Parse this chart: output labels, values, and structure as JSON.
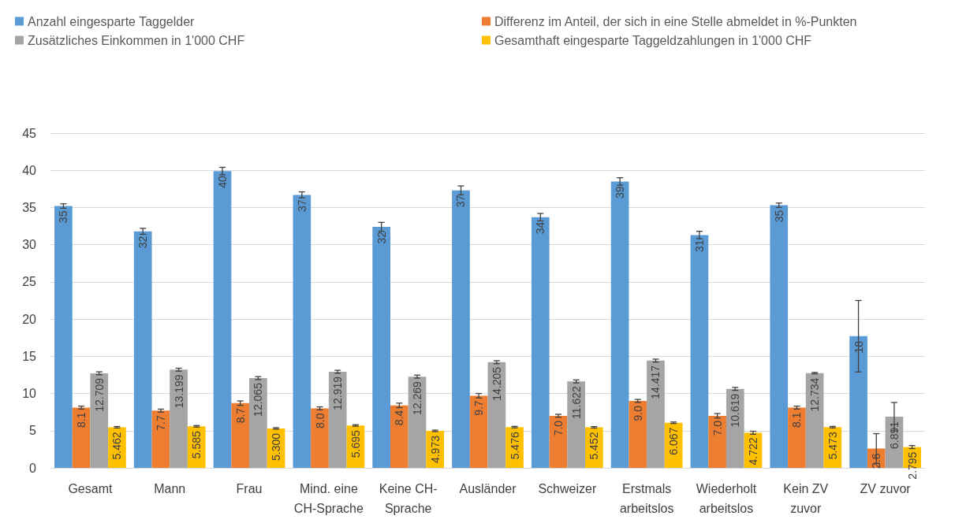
{
  "chart_data": {
    "type": "bar",
    "categories": [
      "Gesamt",
      "Mann",
      "Frau",
      "Mind. eine\nCH-Sprache",
      "Keine CH-\nSprache",
      "Ausländer",
      "Schweizer",
      "Erstmals\narbeitslos",
      "Wiederholt\narbeitslos",
      "Kein ZV\nzuvor",
      "ZV zuvor"
    ],
    "series": [
      {
        "name": "Anzahl eingesparte Taggelder",
        "color": "#5b9bd5",
        "values": [
          35.2,
          31.8,
          39.9,
          36.7,
          32.4,
          37.3,
          33.7,
          38.5,
          31.3,
          35.3,
          17.7
        ],
        "errors": [
          0.3,
          0.4,
          0.5,
          0.4,
          0.6,
          0.6,
          0.5,
          0.5,
          0.5,
          0.3,
          4.8
        ],
        "value_labels": [
          "35",
          "32",
          "40",
          "37",
          "32",
          "37",
          "34",
          "39",
          "31",
          "35",
          "18"
        ]
      },
      {
        "name": "Differenz im Anteil, der sich in eine Stelle abmeldet in %-Punkten",
        "color": "#ed7d31",
        "values": [
          8.1,
          7.7,
          8.7,
          8.0,
          8.4,
          9.7,
          7.0,
          9.0,
          7.0,
          8.1,
          2.6
        ],
        "errors": [
          0.2,
          0.2,
          0.3,
          0.2,
          0.3,
          0.3,
          0.2,
          0.2,
          0.3,
          0.2,
          2.0
        ],
        "value_labels": [
          "8.1",
          "7.7",
          "8.7",
          "8.0",
          "8.4",
          "9.7",
          "7.0",
          "9.0",
          "7.0",
          "8.1",
          "2.6"
        ]
      },
      {
        "name": "Zusätzliches Einkommen in 1'000 CHF",
        "color": "#a5a5a5",
        "values": [
          12.709,
          13.199,
          12.065,
          12.919,
          12.269,
          14.205,
          11.622,
          14.417,
          10.619,
          12.734,
          6.891
        ],
        "errors": [
          0.2,
          0.2,
          0.2,
          0.2,
          0.2,
          0.2,
          0.2,
          0.2,
          0.2,
          0.1,
          1.9
        ],
        "value_labels": [
          "12.709",
          "13.199",
          "12.065",
          "12.919",
          "12.269",
          "14.205",
          "11.622",
          "14.417",
          "10.619",
          "12.734",
          "6.891"
        ]
      },
      {
        "name": "Gesamthaft eingesparte Taggeldzahlungen in 1'000 CHF",
        "color": "#ffc000",
        "values": [
          5.462,
          5.585,
          5.3,
          5.695,
          4.973,
          5.476,
          5.452,
          6.067,
          4.722,
          5.473,
          2.795
        ],
        "errors": [
          0.1,
          0.1,
          0.1,
          0.1,
          0.1,
          0.1,
          0.1,
          0.1,
          0.2,
          0.1,
          0.2
        ],
        "value_labels": [
          "5.462",
          "5.585",
          "5.300",
          "5.695",
          "4.973",
          "5.476",
          "5.452",
          "6.067",
          "4.722",
          "5.473",
          "2.795"
        ]
      }
    ],
    "ylim": [
      0,
      45
    ],
    "yticks": [
      0,
      5,
      10,
      15,
      20,
      25,
      30,
      35,
      40,
      45
    ],
    "grid": "y",
    "legend": "top"
  }
}
